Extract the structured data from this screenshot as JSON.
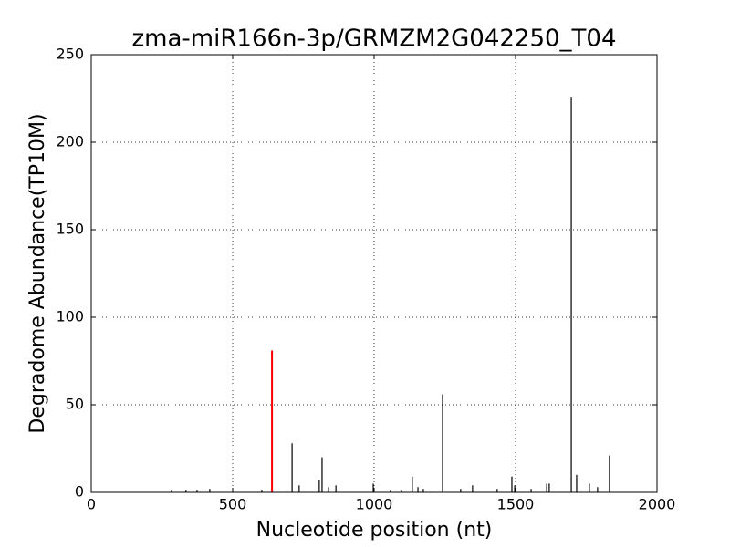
{
  "chart_data": {
    "type": "stem",
    "title": "zma-miR166n-3p/GRMZM2G042250_T04",
    "x_label": "Nucleotide position (nt)",
    "y_label": "Degradome Abundance(TP10M)",
    "xlim": [
      0,
      2000
    ],
    "xticks": [
      0,
      500,
      1000,
      1500,
      2000
    ],
    "ylim": [
      0,
      250
    ],
    "yticks": [
      0,
      50,
      100,
      150,
      200,
      250
    ],
    "grid": true,
    "series": [
      {
        "color": "#000000",
        "x": [
          284,
          335,
          374,
          419,
          603,
          710,
          735,
          806,
          816,
          839,
          865,
          997,
          1058,
          1097,
          1135,
          1155,
          1174,
          1242,
          1306,
          1348,
          1435,
          1487,
          1497,
          1555,
          1610,
          1619,
          1697,
          1716,
          1761,
          1790,
          1832
        ],
        "values": [
          1,
          1,
          1,
          2,
          1,
          28,
          4,
          7,
          20,
          3,
          4,
          5,
          1,
          1,
          9,
          3,
          2,
          56,
          2,
          4,
          2,
          9,
          4,
          2,
          5,
          5,
          226,
          10,
          5,
          3,
          21
        ]
      },
      {
        "color": "#ff0000",
        "x": [
          639
        ],
        "values": [
          81
        ]
      }
    ]
  }
}
